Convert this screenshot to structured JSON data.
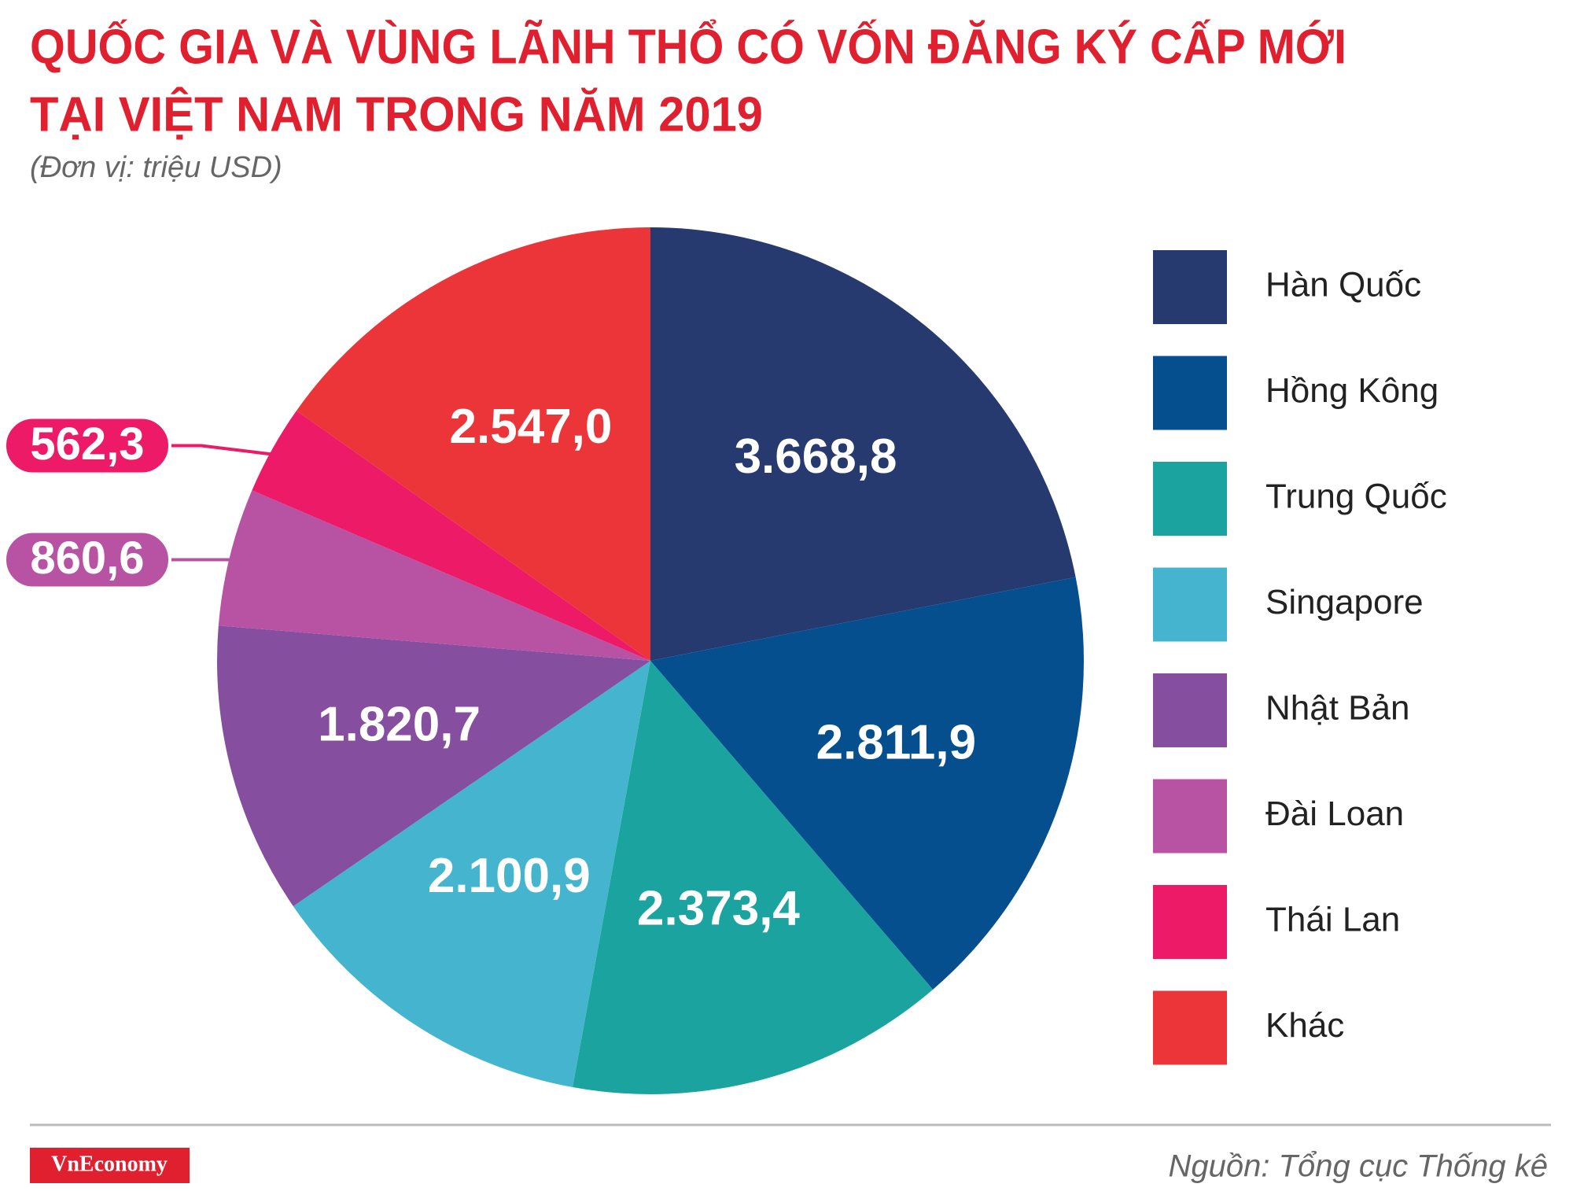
{
  "chart_data": {
    "type": "pie",
    "title": [
      "QUỐC GIA VÀ VÙNG LÃNH THỔ CÓ VỐN ĐĂNG KÝ CẤP MỚI",
      "TẠI VIỆT NAM TRONG NĂM 2019"
    ],
    "subtitle": "(Đơn vị: triệu USD)",
    "categories": [
      "Hàn Quốc",
      "Hồng Kông",
      "Trung Quốc",
      "Singapore",
      "Nhật Bản",
      "Đài Loan",
      "Thái Lan",
      "Khác"
    ],
    "values": [
      3668.8,
      2811.9,
      2373.4,
      2100.9,
      1820.7,
      860.6,
      562.3,
      2547.0
    ],
    "value_labels": [
      "3.668,8",
      "2.811,9",
      "2.373,4",
      "2.100,9",
      "1.820,7",
      "860,6",
      "562,3",
      "2.547,0"
    ],
    "colors": [
      "#263a70",
      "#064f8f",
      "#1aa39f",
      "#45b4ce",
      "#864e9e",
      "#b853a3",
      "#ed1a68",
      "#ec3539"
    ],
    "legend": "right"
  },
  "footer": {
    "logo": "VnEconomy",
    "source": "Nguồn: Tổng cục Thống kê"
  }
}
